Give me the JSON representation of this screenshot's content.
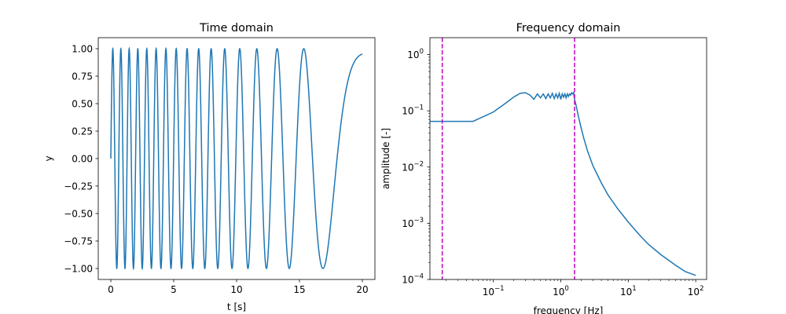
{
  "chart_data": [
    {
      "type": "line",
      "title": "Time domain",
      "xlabel": "t [s]",
      "ylabel": "y",
      "xlim": [
        -1.0,
        21.0
      ],
      "ylim": [
        -1.1,
        1.1
      ],
      "x_ticks": [
        0,
        5,
        10,
        15,
        20
      ],
      "x_tick_labels": [
        "0",
        "5",
        "10",
        "15",
        "20"
      ],
      "y_ticks": [
        -1.0,
        -0.75,
        -0.5,
        -0.25,
        0.0,
        0.25,
        0.5,
        0.75,
        1.0
      ],
      "y_tick_labels": [
        "−1.00",
        "−0.75",
        "−0.50",
        "−0.25",
        "0.00",
        "0.25",
        "0.50",
        "0.75",
        "1.00"
      ],
      "grid": false,
      "series": [
        {
          "color": "#1f77b4",
          "form": "y = sin(2π·(f0·t + (f1 − f0)·t²/(2·T)))",
          "f0_hz": 1.6,
          "f1_hz": 0.02,
          "duration_s": 20,
          "t_range": [
            0,
            20
          ],
          "points": 2000
        }
      ]
    },
    {
      "type": "line",
      "title": "Frequency domain",
      "xlabel": "frequency [Hz]",
      "ylabel": "amplitude [-]",
      "xscale": "log",
      "yscale": "log",
      "xlim": [
        0.0115,
        145
      ],
      "ylim": [
        0.0001,
        2.0
      ],
      "x_ticks": [
        0.1,
        1,
        10,
        100
      ],
      "x_tick_labels": [
        [
          "10",
          "−1"
        ],
        [
          "10",
          "0"
        ],
        [
          "10",
          "1"
        ],
        [
          "10",
          "2"
        ]
      ],
      "y_ticks": [
        0.0001,
        0.001,
        0.01,
        0.1,
        1
      ],
      "y_tick_labels": [
        [
          "10",
          "−4"
        ],
        [
          "10",
          "−3"
        ],
        [
          "10",
          "−2"
        ],
        [
          "10",
          "−1"
        ],
        [
          "10",
          "0"
        ]
      ],
      "grid": false,
      "series": [
        {
          "color": "#1f77b4",
          "x": [
            0.0115,
            0.05,
            0.1,
            0.15,
            0.2,
            0.25,
            0.3,
            0.35,
            0.4,
            0.45,
            0.5,
            0.55,
            0.6,
            0.65,
            0.7,
            0.75,
            0.8,
            0.85,
            0.9,
            0.95,
            1.0,
            1.05,
            1.1,
            1.15,
            1.2,
            1.25,
            1.3,
            1.35,
            1.4,
            1.45,
            1.5,
            1.55,
            1.6,
            1.7,
            1.8,
            2.0,
            2.2,
            2.5,
            3.0,
            4.0,
            5.0,
            7.0,
            10.0,
            15.0,
            20.0,
            30.0,
            50.0,
            70.0,
            100.0
          ],
          "y": [
            0.065,
            0.065,
            0.095,
            0.135,
            0.175,
            0.205,
            0.21,
            0.19,
            0.16,
            0.2,
            0.17,
            0.2,
            0.165,
            0.2,
            0.17,
            0.205,
            0.165,
            0.2,
            0.17,
            0.205,
            0.16,
            0.2,
            0.175,
            0.2,
            0.17,
            0.2,
            0.18,
            0.2,
            0.19,
            0.21,
            0.2,
            0.21,
            0.16,
            0.12,
            0.085,
            0.05,
            0.032,
            0.019,
            0.0105,
            0.0052,
            0.0032,
            0.0018,
            0.00105,
            0.0006,
            0.00042,
            0.00028,
            0.00018,
            0.000138,
            0.000118
          ]
        }
      ],
      "vlines": [
        {
          "x": 0.0175,
          "color": "#bf00bf",
          "style": "dashed"
        },
        {
          "x": 1.6,
          "color": "#bf00bf",
          "style": "dashed"
        }
      ]
    }
  ]
}
